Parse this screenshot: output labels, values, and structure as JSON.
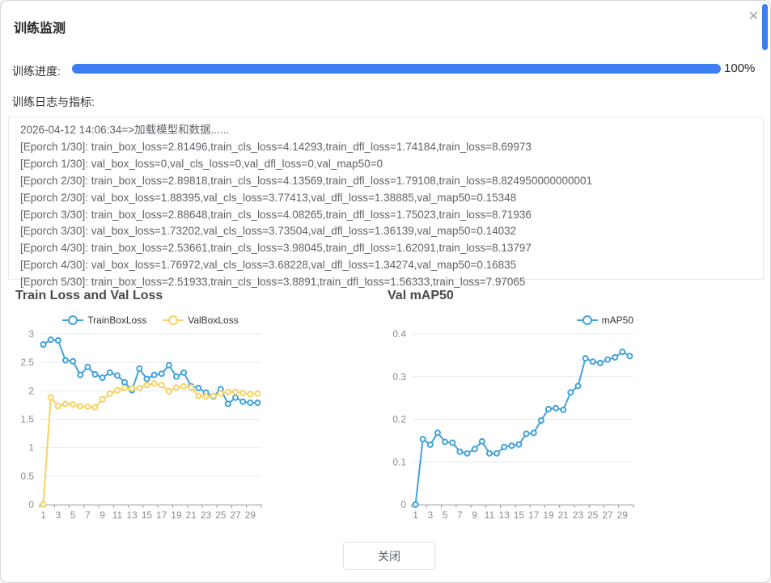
{
  "dialog": {
    "title": "训练监测",
    "close_icon": "✕",
    "progress": {
      "label": "训练进度:",
      "value": 100,
      "percent_text": "100%"
    },
    "log_label": "训练日志与指标:",
    "log_lines": [
      "2026-04-12 14:06:34=>加载模型和数据......",
      "[Eporch 1/30]: train_box_loss=2.81496,train_cls_loss=4.14293,train_dfl_loss=1.74184,train_loss=8.69973",
      "[Eporch 1/30]: val_box_loss=0,val_cls_loss=0,val_dfl_loss=0,val_map50=0",
      "[Eporch 2/30]: train_box_loss=2.89818,train_cls_loss=4.13569,train_dfl_loss=1.79108,train_loss=8.824950000000001",
      "[Eporch 2/30]: val_box_loss=1.88395,val_cls_loss=3.77413,val_dfl_loss=1.38885,val_map50=0.15348",
      "[Eporch 3/30]: train_box_loss=2.88648,train_cls_loss=4.08265,train_dfl_loss=1.75023,train_loss=8.71936",
      "[Eporch 3/30]: val_box_loss=1.73202,val_cls_loss=3.73504,val_dfl_loss=1.36139,val_map50=0.14032",
      "[Eporch 4/30]: train_box_loss=2.53661,train_cls_loss=3.98045,train_dfl_loss=1.62091,train_loss=8.13797",
      "[Eporch 4/30]: val_box_loss=1.76972,val_cls_loss=3.68228,val_dfl_loss=1.34274,val_map50=0.16835",
      "[Eporch 5/30]: train_box_loss=2.51933,train_cls_loss=3.8891,train_dfl_loss=1.56333,train_loss=7.97065"
    ],
    "close_button_label": "关闭"
  },
  "colors": {
    "progress_blue": "#3d7ef5",
    "scrollbar_blue": "#3d7ef5",
    "series_blue": "#41a2dc",
    "series_yellow": "#f7d35f",
    "grid": "#e5ebf2",
    "axis": "#999999",
    "axis_label": "#8e8e8e"
  },
  "chart_data": [
    {
      "type": "line",
      "title": "Train Loss and Val Loss",
      "x": [
        1,
        2,
        3,
        4,
        5,
        6,
        7,
        8,
        9,
        10,
        11,
        12,
        13,
        14,
        15,
        16,
        17,
        18,
        19,
        20,
        21,
        22,
        23,
        24,
        25,
        26,
        27,
        28,
        29,
        30
      ],
      "x_label_step": 2,
      "ylim": [
        0,
        3
      ],
      "yticks": [
        0,
        0.5,
        1,
        1.5,
        2,
        2.5,
        3
      ],
      "grid": true,
      "legend_position": "center",
      "series": [
        {
          "name": "TrainBoxLoss",
          "color": "#41a2dc",
          "values": [
            2.81496,
            2.89818,
            2.88648,
            2.53661,
            2.51933,
            2.28,
            2.42,
            2.29,
            2.23,
            2.32,
            2.27,
            2.15,
            2.01,
            2.39,
            2.21,
            2.28,
            2.3,
            2.45,
            2.25,
            2.32,
            2.08,
            2.05,
            1.97,
            1.9,
            2.03,
            1.77,
            1.88,
            1.81,
            1.79,
            1.79
          ]
        },
        {
          "name": "ValBoxLoss",
          "color": "#f7d35f",
          "values": [
            0,
            1.88395,
            1.73202,
            1.76972,
            1.76,
            1.73,
            1.72,
            1.71,
            1.85,
            1.95,
            2.01,
            2.05,
            2.04,
            2.05,
            2.1,
            2.13,
            2.1,
            1.99,
            2.06,
            2.08,
            2.06,
            1.91,
            1.9,
            1.91,
            1.95,
            1.98,
            1.98,
            1.96,
            1.94,
            1.95
          ]
        }
      ]
    },
    {
      "type": "line",
      "title": "Val mAP50",
      "x": [
        1,
        2,
        3,
        4,
        5,
        6,
        7,
        8,
        9,
        10,
        11,
        12,
        13,
        14,
        15,
        16,
        17,
        18,
        19,
        20,
        21,
        22,
        23,
        24,
        25,
        26,
        27,
        28,
        29,
        30
      ],
      "x_label_step": 2,
      "ylim": [
        0,
        0.4
      ],
      "yticks": [
        0,
        0.1,
        0.2,
        0.3,
        0.4
      ],
      "grid": true,
      "legend_position": "right",
      "series": [
        {
          "name": "mAP50",
          "color": "#41a2dc",
          "values": [
            0,
            0.15348,
            0.14032,
            0.16835,
            0.147,
            0.145,
            0.124,
            0.12,
            0.13,
            0.148,
            0.12,
            0.12,
            0.135,
            0.138,
            0.141,
            0.166,
            0.168,
            0.197,
            0.224,
            0.226,
            0.222,
            0.263,
            0.278,
            0.343,
            0.335,
            0.332,
            0.34,
            0.345,
            0.358,
            0.348
          ]
        }
      ]
    }
  ]
}
